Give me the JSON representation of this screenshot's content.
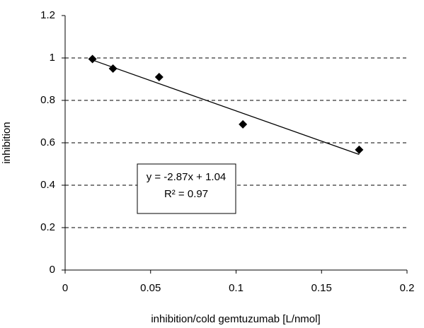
{
  "chart_data": {
    "type": "scatter",
    "x_label": "inhibition/cold gemtuzumab [L/nmol]",
    "y_label": "inhibition",
    "series": [
      {
        "color": "#000000",
        "x": [
          0.016,
          0.028,
          0.055,
          0.104,
          0.172
        ],
        "values": [
          0.995,
          0.95,
          0.91,
          0.687,
          0.567
        ]
      }
    ],
    "trendline": "linear",
    "annotation": [
      "y = -2.87x + 1.04",
      "R² = 0.97"
    ],
    "xlim": [
      0,
      0.2
    ],
    "xticks": [
      0,
      0.05,
      0.1,
      0.15,
      0.2
    ],
    "ylim": [
      0,
      1.2
    ],
    "yticks": [
      0,
      0.2,
      0.4,
      0.6,
      0.8,
      1,
      1.2
    ],
    "grid": true
  }
}
